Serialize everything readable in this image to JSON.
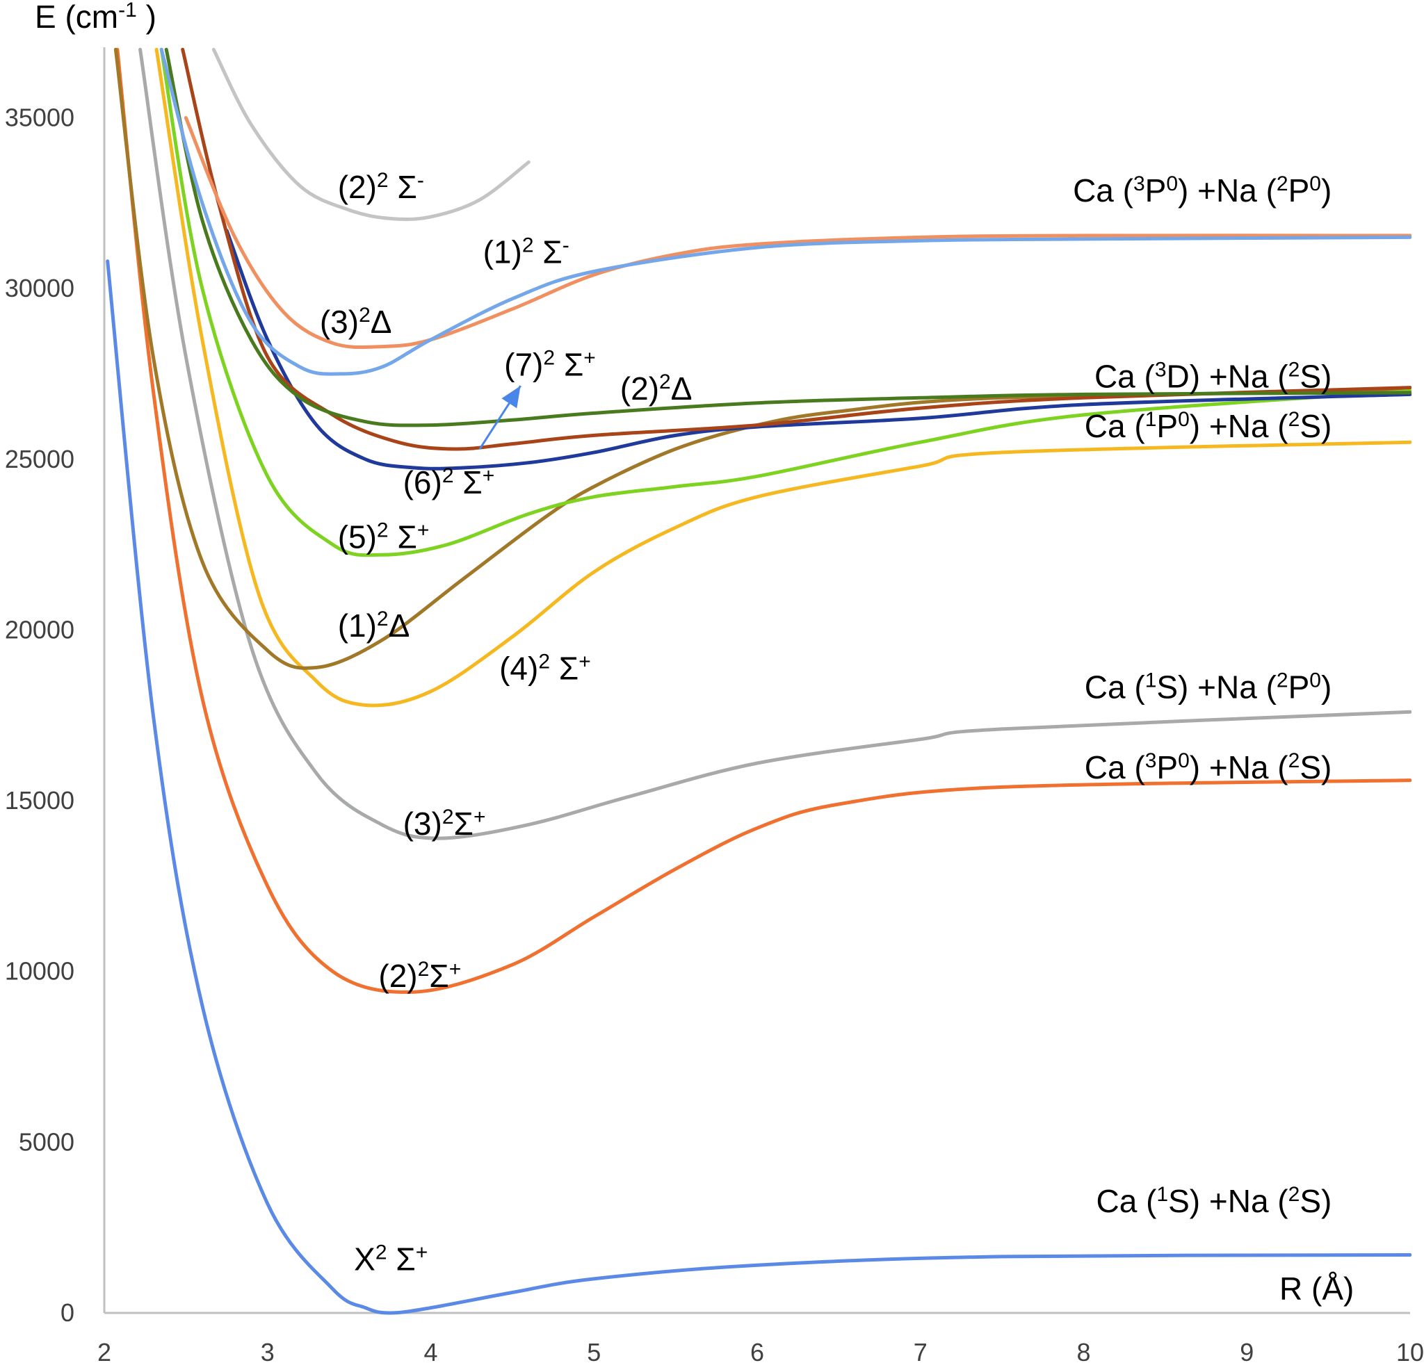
{
  "chart_data": {
    "type": "line",
    "title": "",
    "xlabel": "R (Å)",
    "ylabel": "E (cm-1 )",
    "xlim": [
      2,
      10
    ],
    "ylim": [
      0,
      37000
    ],
    "x_ticks": [
      2,
      3,
      4,
      5,
      6,
      7,
      8,
      9,
      10
    ],
    "y_ticks": [
      0,
      5000,
      10000,
      15000,
      20000,
      25000,
      30000,
      35000
    ],
    "grid": false,
    "series": [
      {
        "name": "X2 Σ+",
        "color": "#5b8ae6",
        "x": [
          2.02,
          2.3,
          2.6,
          3.0,
          3.4,
          3.6,
          3.75,
          4.0,
          4.5,
          5.0,
          6.0,
          7.5,
          10.0
        ],
        "y": [
          30800,
          17500,
          9000,
          3200,
          700,
          150,
          0,
          150,
          600,
          1000,
          1400,
          1650,
          1700
        ]
      },
      {
        "name": "(2)2Σ+",
        "color": "#f07030",
        "x": [
          2.08,
          2.3,
          2.6,
          3.0,
          3.4,
          3.9,
          4.5,
          5.0,
          5.5,
          6.0,
          6.5,
          7.5,
          10.0
        ],
        "y": [
          37000,
          27000,
          18000,
          12500,
          10000,
          9400,
          10200,
          11600,
          13000,
          14200,
          14900,
          15400,
          15600
        ]
      },
      {
        "name": "(3)2Σ+",
        "color": "#a8aaaa",
        "x": [
          2.22,
          2.5,
          2.9,
          3.3,
          3.7,
          4.05,
          4.6,
          5.2,
          6.0,
          7.0,
          7.5,
          10.0
        ],
        "y": [
          37000,
          28000,
          19500,
          15800,
          14300,
          13900,
          14300,
          15100,
          16100,
          16800,
          17100,
          17600
        ]
      },
      {
        "name": "(4)2 Σ+",
        "color": "#f5b820",
        "x": [
          2.32,
          2.6,
          2.95,
          3.3,
          3.6,
          4.0,
          4.5,
          5.0,
          5.5,
          6.0,
          7.0,
          7.5,
          10.0
        ],
        "y": [
          37000,
          28500,
          21000,
          18500,
          17800,
          18200,
          19800,
          21700,
          23000,
          23900,
          24800,
          25200,
          25500
        ]
      },
      {
        "name": "(1)2Δ",
        "color": "#a07828",
        "x": [
          2.07,
          2.3,
          2.6,
          3.0,
          3.3,
          3.7,
          4.2,
          4.7,
          5.0,
          5.5,
          6.0,
          6.5,
          7.5,
          10.0
        ],
        "y": [
          37000,
          28000,
          22000,
          19400,
          18900,
          19700,
          21500,
          23300,
          24200,
          25300,
          26000,
          26400,
          26800,
          27000
        ]
      },
      {
        "name": "(5)2 Σ+",
        "color": "#7ed321",
        "x": [
          2.35,
          2.6,
          3.0,
          3.4,
          3.7,
          4.1,
          4.6,
          5.0,
          5.5,
          6.0,
          7.0,
          8.0,
          10.0
        ],
        "y": [
          37000,
          30000,
          24500,
          22500,
          22200,
          22500,
          23400,
          23900,
          24200,
          24500,
          25500,
          26300,
          27000
        ]
      },
      {
        "name": "(6)2 Σ+",
        "color": "#1f3a9a",
        "x": [
          2.75,
          3.0,
          3.3,
          3.6,
          3.9,
          4.2,
          4.6,
          5.0,
          5.5,
          6.0,
          7.0,
          8.0,
          10.0
        ],
        "y": [
          31700,
          28500,
          26000,
          25000,
          24750,
          24750,
          24900,
          25200,
          25700,
          25950,
          26200,
          26600,
          26900
        ]
      },
      {
        "name": "(7)2 Σ+",
        "color": "#a84418",
        "x": [
          2.48,
          2.7,
          3.0,
          3.4,
          3.8,
          4.15,
          4.5,
          5.0,
          6.0,
          7.0,
          8.0,
          10.0
        ],
        "y": [
          37000,
          32500,
          28000,
          26300,
          25500,
          25300,
          25450,
          25700,
          26000,
          26500,
          26800,
          27100
        ]
      },
      {
        "name": "(2)2Δ",
        "color": "#4a7a1e",
        "x": [
          2.38,
          2.6,
          2.9,
          3.2,
          3.6,
          4.0,
          4.5,
          5.0,
          6.0,
          7.0,
          8.0,
          10.0
        ],
        "y": [
          37000,
          32000,
          28500,
          26800,
          26100,
          26000,
          26150,
          26350,
          26650,
          26800,
          26900,
          26950
        ]
      },
      {
        "name": "(3)2Δ",
        "color": "#f09060",
        "x": [
          2.5,
          2.8,
          3.1,
          3.4,
          3.7,
          4.0,
          4.5,
          5.0,
          5.5,
          6.0,
          7.0,
          8.0,
          10.0
        ],
        "y": [
          35000,
          31500,
          29300,
          28400,
          28300,
          28500,
          29400,
          30400,
          31000,
          31300,
          31500,
          31550,
          31550
        ]
      },
      {
        "name": "(1)2 Σ-",
        "color": "#74a6ea",
        "x": [
          2.35,
          2.6,
          2.9,
          3.2,
          3.45,
          3.7,
          4.0,
          4.5,
          5.0,
          6.0,
          7.0,
          8.0,
          10.0
        ],
        "y": [
          37000,
          32500,
          29000,
          27700,
          27500,
          27700,
          28500,
          29700,
          30500,
          31200,
          31400,
          31450,
          31500
        ]
      },
      {
        "name": "(2)2 Σ-",
        "color": "#c2c5c3",
        "x": [
          2.67,
          2.9,
          3.2,
          3.5,
          3.75,
          4.0,
          4.3,
          4.6
        ],
        "y": [
          37000,
          34800,
          33000,
          32300,
          32050,
          32100,
          32600,
          33700
        ]
      }
    ],
    "curve_labels": [
      {
        "series": "(2)2 Σ-",
        "base": "(2)",
        "sup": "2",
        "text": " Σ",
        "sup2": "-",
        "x": 3.43,
        "y": 32650
      },
      {
        "series": "(1)2 Σ-",
        "base": "(1)",
        "sup": "2",
        "text": " Σ",
        "sup2": "-",
        "x": 4.32,
        "y": 30750
      },
      {
        "series": "(3)2Δ",
        "base": "(3)",
        "sup": "2",
        "text": "Δ",
        "sup2": "",
        "x": 3.32,
        "y": 28700
      },
      {
        "series": "(7)2 Σ+",
        "base": "(7)",
        "sup": "2",
        "text": " Σ",
        "sup2": "+",
        "x": 4.45,
        "y": 27450
      },
      {
        "series": "(2)2Δ",
        "base": "(2)",
        "sup": "2",
        "text": "Δ",
        "sup2": "",
        "x": 5.16,
        "y": 26750
      },
      {
        "series": "(6)2 Σ+",
        "base": "(6)",
        "sup": "2",
        "text": " Σ",
        "sup2": "+",
        "x": 3.83,
        "y": 24000
      },
      {
        "series": "(5)2 Σ+",
        "base": "(5)",
        "sup": "2",
        "text": " Σ",
        "sup2": "+",
        "x": 3.43,
        "y": 22400
      },
      {
        "series": "(1)2Δ",
        "base": "(1)",
        "sup": "2",
        "text": "Δ",
        "sup2": "",
        "x": 3.43,
        "y": 19800
      },
      {
        "series": "(4)2 Σ+",
        "base": "(4)",
        "sup": "2",
        "text": " Σ",
        "sup2": "+",
        "x": 4.42,
        "y": 18550
      },
      {
        "series": "(3)2Σ+",
        "base": "(3)",
        "sup": "2",
        "text": "Σ",
        "sup2": "+",
        "x": 3.83,
        "y": 14000
      },
      {
        "series": "(2)2Σ+",
        "base": "(2)",
        "sup": "2",
        "text": "Σ",
        "sup2": "+",
        "x": 3.68,
        "y": 9550
      },
      {
        "series": "X2 Σ+",
        "base": "X",
        "sup": "2",
        "text": " Σ",
        "sup2": "+",
        "x": 3.53,
        "y": 1250
      }
    ],
    "asymptote_labels": [
      {
        "parts": [
          "Ca (",
          "3",
          "P",
          "0",
          ") +Na (",
          "2",
          "P",
          "0",
          ")"
        ],
        "x": 9.52,
        "y": 32550
      },
      {
        "parts": [
          "Ca (",
          "3",
          "D) +Na (",
          "2",
          "S)"
        ],
        "x": 9.52,
        "y": 27100
      },
      {
        "parts": [
          "Ca (",
          "1",
          "P",
          "0",
          ") +Na (",
          "2",
          "S)"
        ],
        "x": 9.52,
        "y": 25650
      },
      {
        "parts": [
          "Ca (",
          "1",
          "S) +Na (",
          "2",
          "P",
          "0",
          ")"
        ],
        "x": 9.52,
        "y": 18000
      },
      {
        "parts": [
          "Ca (",
          "3",
          "P",
          "0",
          ") +Na (",
          "2",
          "S)"
        ],
        "x": 9.52,
        "y": 15650
      },
      {
        "parts": [
          "Ca (",
          "1",
          "S) +Na (",
          "2",
          "S)"
        ],
        "x": 9.52,
        "y": 2950
      }
    ],
    "axis_title_parts": {
      "ylabel": [
        "E (cm",
        "-1",
        " )"
      ],
      "xlabel": "R (Å)"
    },
    "annotation_arrow": {
      "from": [
        4.3,
        25300
      ],
      "to": [
        4.55,
        27150
      ],
      "color": "#4a86e8"
    }
  }
}
